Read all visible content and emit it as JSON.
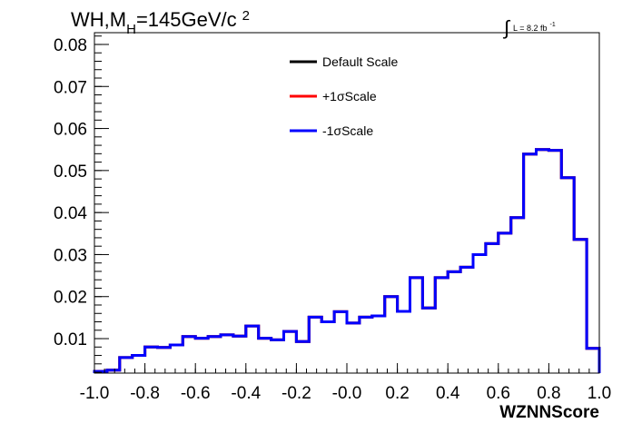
{
  "chart_data": {
    "type": "line",
    "title_parts": {
      "prefix": "WH,M",
      "subscript": "H",
      "middle": "=145GeV/c",
      "superscript": "2"
    },
    "lumi_parts": {
      "integral": "∫",
      "text": "L = 8.2 fb",
      "superscript": "-1"
    },
    "xlabel": "WZNNScore",
    "ylabel": "",
    "xlim": [
      -1.0,
      1.0
    ],
    "ylim": [
      0.0018,
      0.0828
    ],
    "x_ticks": [
      -1.0,
      -0.8,
      -0.6,
      -0.4,
      -0.2,
      0.0,
      0.2,
      0.4,
      0.6,
      0.8,
      1.0
    ],
    "x_tick_labels": [
      "-1.0",
      "-0.8",
      "-0.6",
      "-0.4",
      "-0.2",
      "-0.0",
      "0.2",
      "0.4",
      "0.6",
      "0.8",
      "1.0"
    ],
    "y_ticks": [
      0.01,
      0.02,
      0.03,
      0.04,
      0.05,
      0.06,
      0.07,
      0.08
    ],
    "y_tick_labels": [
      "0.01",
      "0.02",
      "0.03",
      "0.04",
      "0.05",
      "0.06",
      "0.07",
      "0.08"
    ],
    "bin_edges": [
      -1.0,
      -0.95,
      -0.9,
      -0.85,
      -0.8,
      -0.75,
      -0.7,
      -0.65,
      -0.6,
      -0.55,
      -0.5,
      -0.45,
      -0.4,
      -0.35,
      -0.3,
      -0.25,
      -0.2,
      -0.15,
      -0.1,
      -0.05,
      0.0,
      0.05,
      0.1,
      0.15,
      0.2,
      0.25,
      0.3,
      0.35,
      0.4,
      0.45,
      0.5,
      0.55,
      0.6,
      0.65,
      0.7,
      0.75,
      0.8,
      0.85,
      0.9,
      0.95,
      1.0
    ],
    "series": [
      {
        "name": "Default Scale",
        "color": "#000000",
        "values": [
          0.0022,
          0.0025,
          0.0055,
          0.006,
          0.008,
          0.0079,
          0.0085,
          0.0105,
          0.0101,
          0.0105,
          0.0109,
          0.0106,
          0.013,
          0.0101,
          0.0097,
          0.0117,
          0.0093,
          0.0151,
          0.014,
          0.0164,
          0.0137,
          0.0151,
          0.0154,
          0.02,
          0.0165,
          0.0245,
          0.0173,
          0.0245,
          0.0259,
          0.027,
          0.03,
          0.0326,
          0.0351,
          0.0388,
          0.0539,
          0.055,
          0.0548,
          0.0483,
          0.0336,
          0.0077
        ]
      },
      {
        "name": "+1σScale",
        "color": "#ff0000",
        "values": [
          0.0022,
          0.0025,
          0.0055,
          0.006,
          0.008,
          0.0079,
          0.0085,
          0.0105,
          0.0101,
          0.0105,
          0.0109,
          0.0106,
          0.013,
          0.0101,
          0.0097,
          0.0117,
          0.0093,
          0.0151,
          0.014,
          0.0164,
          0.0137,
          0.0151,
          0.0154,
          0.02,
          0.0165,
          0.0245,
          0.0173,
          0.0245,
          0.0259,
          0.027,
          0.03,
          0.0326,
          0.0351,
          0.0388,
          0.0539,
          0.055,
          0.0548,
          0.0483,
          0.0336,
          0.0077
        ]
      },
      {
        "name": "-1σScale",
        "color": "#0000ff",
        "values": [
          0.0022,
          0.0025,
          0.0055,
          0.006,
          0.008,
          0.0079,
          0.0085,
          0.0105,
          0.0101,
          0.0105,
          0.0109,
          0.0106,
          0.013,
          0.0101,
          0.0097,
          0.0117,
          0.0093,
          0.0151,
          0.014,
          0.0164,
          0.0137,
          0.0151,
          0.0154,
          0.02,
          0.0165,
          0.0245,
          0.0173,
          0.0245,
          0.0259,
          0.027,
          0.03,
          0.0326,
          0.0351,
          0.0388,
          0.0539,
          0.055,
          0.0548,
          0.0483,
          0.0336,
          0.0077
        ]
      }
    ],
    "legend_position": "top-center",
    "grid": false
  }
}
